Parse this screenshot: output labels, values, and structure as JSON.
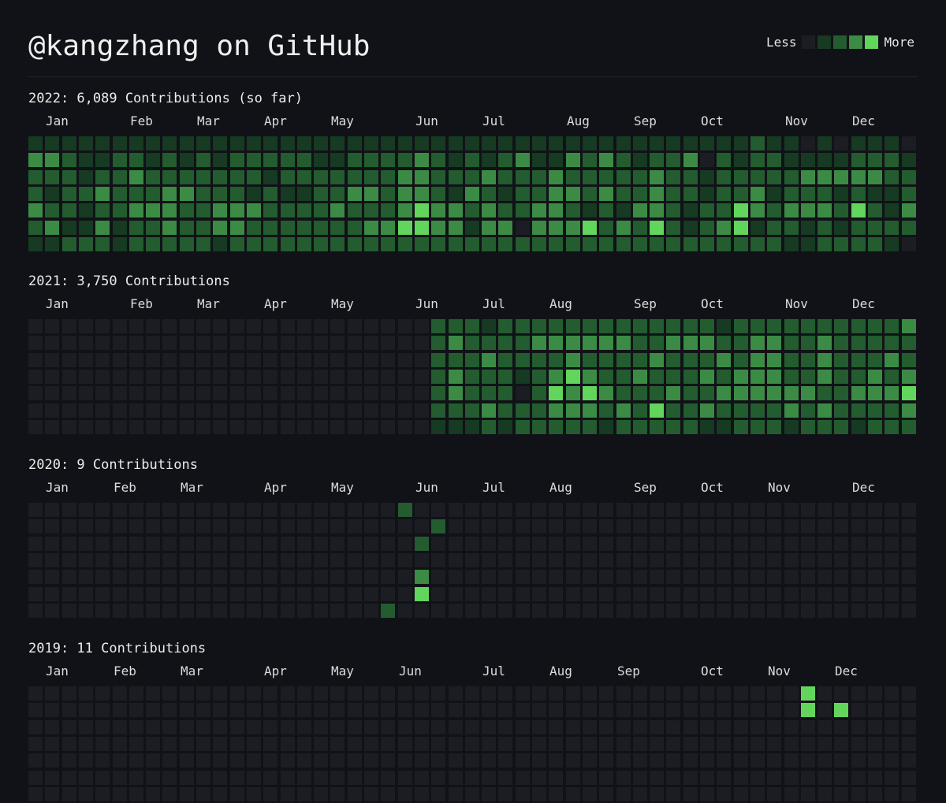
{
  "page": {
    "title": "@kangzhang on GitHub",
    "legend": {
      "less": "Less",
      "more": "More"
    }
  },
  "colors": {
    "background": "#111217",
    "levels": [
      "#1b1d23",
      "#163a22",
      "#225c2f",
      "#3b8b45",
      "#62d55c"
    ]
  },
  "years": [
    {
      "label": "2022: 6,089 Contributions (so far)",
      "months": [
        {
          "label": "Jan",
          "week": 1
        },
        {
          "label": "Feb",
          "week": 6
        },
        {
          "label": "Mar",
          "week": 10
        },
        {
          "label": "Apr",
          "week": 14
        },
        {
          "label": "May",
          "week": 18
        },
        {
          "label": "Jun",
          "week": 23
        },
        {
          "label": "Jul",
          "week": 27
        },
        {
          "label": "Aug",
          "week": 32
        },
        {
          "label": "Sep",
          "week": 36
        },
        {
          "label": "Oct",
          "week": 40
        },
        {
          "label": "Nov",
          "week": 45
        },
        {
          "label": "Dec",
          "week": 49
        }
      ],
      "grid": [
        "11111111111111111111111111111111111111111112110101110111111111",
        "3321122121212222211222232121231132321223021221111222111121111211",
        "2221223222222212222222332223222322222322122222333332222122212222",
        "212232223322212112233233213212233232232212231222121121222212112",
        "3221223332233322223222343323223321213321224323332421322232332222",
        "2311312232233222222233443313303334232421234122121222211221122122",
        "11222122222122222222222222222222222222222222211222210222221200"
      ]
    },
    {
      "label": "2021: 3,750 Contributions",
      "months": [
        {
          "label": "Jan",
          "week": 1
        },
        {
          "label": "Feb",
          "week": 6
        },
        {
          "label": "Mar",
          "week": 10
        },
        {
          "label": "Apr",
          "week": 14
        },
        {
          "label": "May",
          "week": 18
        },
        {
          "label": "Jun",
          "week": 23
        },
        {
          "label": "Jul",
          "week": 27
        },
        {
          "label": "Aug",
          "week": 31
        },
        {
          "label": "Sep",
          "week": 36
        },
        {
          "label": "Oct",
          "week": 40
        },
        {
          "label": "Nov",
          "week": 45
        },
        {
          "label": "Dec",
          "week": 49
        }
      ],
      "grid": [
        "00000000000000000000000022212222222222222122222222223222212102122",
        "0000000000000000000000002322223333332233322332232222232232222322233",
        "0000000000000000000000002223222232222322232332232223232232333332323",
        "0000000000000000000000002322212343223222323332232232322232223323333",
        "0000000000000000000000002322202434322232233333322333423244232233333",
        "0000000000000000000000002223222333232422322223232222323230434223000",
        "000000000000000000000000111212222212222211222122212222201111100"
      ]
    },
    {
      "label": "2020: 9 Contributions",
      "months": [
        {
          "label": "Jan",
          "week": 1
        },
        {
          "label": "Feb",
          "week": 5
        },
        {
          "label": "Mar",
          "week": 9
        },
        {
          "label": "Apr",
          "week": 14
        },
        {
          "label": "May",
          "week": 18
        },
        {
          "label": "Jun",
          "week": 23
        },
        {
          "label": "Jul",
          "week": 27
        },
        {
          "label": "Aug",
          "week": 31
        },
        {
          "label": "Sep",
          "week": 36
        },
        {
          "label": "Oct",
          "week": 40
        },
        {
          "label": "Nov",
          "week": 44
        },
        {
          "label": "Dec",
          "week": 49
        }
      ],
      "grid": [
        "000000000000000000000020000000000000000000000000000000",
        "000000000000000000000000200000000000000000000000000000",
        "000000000000000000000002000000000000000000000000000000",
        "000000000000000000000000000000000000000000000000000000",
        "000000000000000000000003000000000000000000000000000000",
        "000000000000000000000004000000000000000000000000000000",
        "000000000000000000000200000000000000000000000000000000"
      ]
    },
    {
      "label": "2019: 11 Contributions",
      "months": [
        {
          "label": "Jan",
          "week": 1
        },
        {
          "label": "Feb",
          "week": 5
        },
        {
          "label": "Mar",
          "week": 9
        },
        {
          "label": "Apr",
          "week": 14
        },
        {
          "label": "May",
          "week": 18
        },
        {
          "label": "Jun",
          "week": 22
        },
        {
          "label": "Jul",
          "week": 27
        },
        {
          "label": "Aug",
          "week": 31
        },
        {
          "label": "Sep",
          "week": 35
        },
        {
          "label": "Oct",
          "week": 40
        },
        {
          "label": "Nov",
          "week": 44
        },
        {
          "label": "Dec",
          "week": 48
        }
      ],
      "grid": [
        "000000000000000000000000000000000000000000000040000000",
        "000000000000000000000000000000000000000000000040400000",
        "000000000000000000000000000000000000000000000000000000",
        "000000000000000000000000000000000000000000000000000000",
        "000000000000000000000000000000000000000000000000000000",
        "000000000000000000000000000000000000000000000000000000",
        "000000000000000000000000000000000000000000000000000000"
      ]
    }
  ]
}
